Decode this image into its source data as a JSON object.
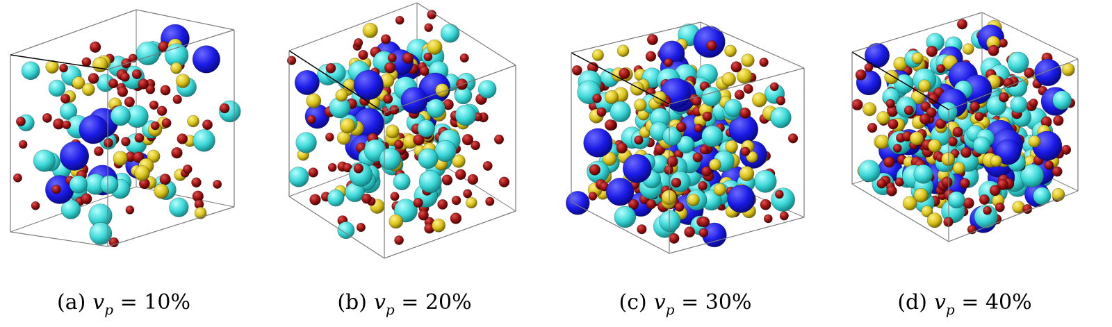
{
  "panels": [
    {
      "label": "(a)",
      "var": "v",
      "sub": "p",
      "rel": "=",
      "value": "10%",
      "fraction": 0.1
    },
    {
      "label": "(b)",
      "var": "v",
      "sub": "p",
      "rel": "=",
      "value": "20%",
      "fraction": 0.2
    },
    {
      "label": "(c)",
      "var": "v",
      "sub": "p",
      "rel": "=",
      "value": "30%",
      "fraction": 0.3
    },
    {
      "label": "(d)",
      "var": "v",
      "sub": "p",
      "rel": "=",
      "value": "40%",
      "fraction": 0.4
    }
  ],
  "colors": {
    "blue": "#1a1ae6",
    "cyan": "#3ad6d6",
    "yellow": "#d9c21a",
    "red": "#9b1010",
    "edge": "#7a7a7a",
    "front_edge": "#000000"
  }
}
